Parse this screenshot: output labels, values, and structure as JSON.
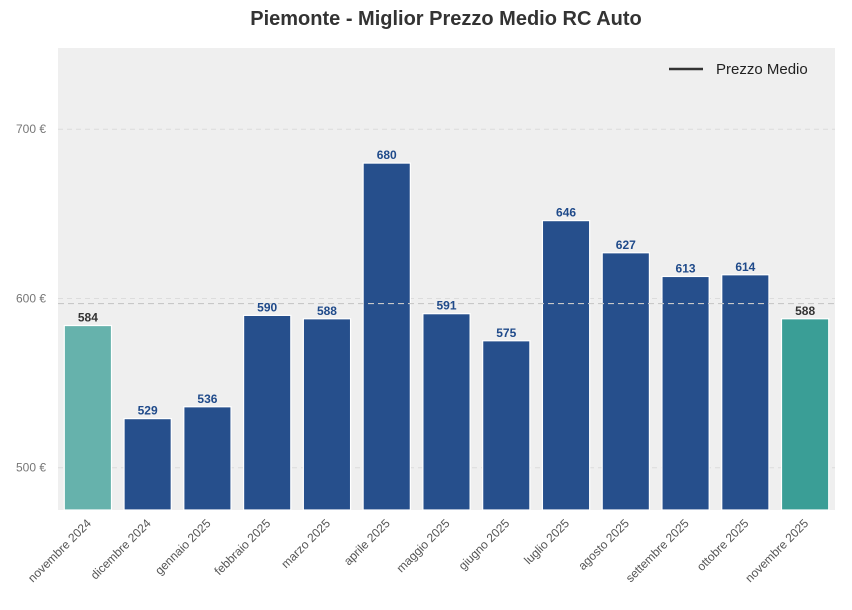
{
  "chart_data": {
    "type": "bar",
    "title": "Piemonte - Miglior Prezzo Medio RC Auto",
    "xlabel": "",
    "ylabel": "",
    "categories": [
      "novembre 2024",
      "dicembre 2024",
      "gennaio 2025",
      "febbraio 2025",
      "marzo 2025",
      "aprile 2025",
      "maggio 2025",
      "giugno 2025",
      "luglio 2025",
      "agosto 2025",
      "settembre 2025",
      "ottobre 2025",
      "novembre 2025"
    ],
    "values": [
      584,
      529,
      536,
      590,
      588,
      680,
      591,
      575,
      646,
      627,
      613,
      614,
      588
    ],
    "value_labels": [
      "584",
      "529",
      "536",
      "590",
      "588",
      "680",
      "591",
      "575",
      "646",
      "627",
      "613",
      "614",
      "588"
    ],
    "bar_colors": [
      "#66b2ac",
      "#264f8c",
      "#264f8c",
      "#264f8c",
      "#264f8c",
      "#264f8c",
      "#264f8c",
      "#264f8c",
      "#264f8c",
      "#264f8c",
      "#264f8c",
      "#264f8c",
      "#3a9e96"
    ],
    "label_colors": [
      "#333333",
      "#1f4a8a",
      "#1f4a8a",
      "#1f4a8a",
      "#1f4a8a",
      "#1f4a8a",
      "#1f4a8a",
      "#1f4a8a",
      "#1f4a8a",
      "#1f4a8a",
      "#1f4a8a",
      "#1f4a8a",
      "#333333"
    ],
    "ylim": [
      475,
      748
    ],
    "yticks": [
      500,
      600,
      700
    ],
    "ytick_labels": [
      "500 €",
      "600 €",
      "700 €"
    ],
    "average_line": {
      "value": 597,
      "label": "Prezzo Medio",
      "color": "#c8c8c8"
    },
    "legend": {
      "position": "top-right",
      "entries": [
        "Prezzo Medio"
      ]
    },
    "grid": true,
    "background_color": "#efefef"
  }
}
